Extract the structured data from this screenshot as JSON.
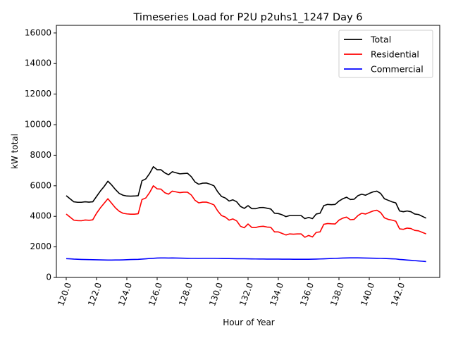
{
  "chart_data": {
    "type": "line",
    "title": "Timeseries Load for P2U p2uhs1_1247  Day 6",
    "xlabel": "Hour of Year",
    "ylabel": "kW total",
    "xlim": [
      119.35,
      144.65
    ],
    "ylim": [
      0,
      16500
    ],
    "xticks": [
      "120.0",
      "122.0",
      "124.0",
      "126.0",
      "128.0",
      "130.0",
      "132.0",
      "134.0",
      "136.0",
      "138.0",
      "140.0",
      "142.0"
    ],
    "xtick_values": [
      120,
      122,
      124,
      126,
      128,
      130,
      132,
      134,
      136,
      138,
      140,
      142
    ],
    "yticks": [
      "0",
      "2000",
      "4000",
      "6000",
      "8000",
      "10000",
      "12000",
      "14000",
      "16000"
    ],
    "ytick_values": [
      0,
      2000,
      4000,
      6000,
      8000,
      10000,
      12000,
      14000,
      16000
    ],
    "legend_position": "top-right",
    "x": [
      120.0,
      120.25,
      120.5,
      120.75,
      121.0,
      121.25,
      121.5,
      121.75,
      122.0,
      122.25,
      122.5,
      122.75,
      123.0,
      123.25,
      123.5,
      123.75,
      124.0,
      124.25,
      124.5,
      124.75,
      125.0,
      125.25,
      125.5,
      125.75,
      126.0,
      126.25,
      126.5,
      126.75,
      127.0,
      127.25,
      127.5,
      127.75,
      128.0,
      128.25,
      128.5,
      128.75,
      129.0,
      129.25,
      129.5,
      129.75,
      130.0,
      130.25,
      130.5,
      130.75,
      131.0,
      131.25,
      131.5,
      131.75,
      132.0,
      132.25,
      132.5,
      132.75,
      133.0,
      133.25,
      133.5,
      133.75,
      134.0,
      134.25,
      134.5,
      134.75,
      135.0,
      135.25,
      135.5,
      135.75,
      136.0,
      136.25,
      136.5,
      136.75,
      137.0,
      137.25,
      137.5,
      137.75,
      138.0,
      138.25,
      138.5,
      138.75,
      139.0,
      139.25,
      139.5,
      139.75,
      140.0,
      140.25,
      140.5,
      140.75,
      141.0,
      141.25,
      141.5,
      141.75,
      142.0,
      142.25,
      142.5,
      142.75,
      143.0,
      143.25,
      143.5,
      143.75
    ],
    "series": [
      {
        "name": "Total",
        "color": "#000000",
        "values": [
          5350,
          5150,
          4950,
          4920,
          4920,
          4950,
          4930,
          4950,
          5300,
          5650,
          5950,
          6300,
          6050,
          5750,
          5500,
          5380,
          5330,
          5320,
          5330,
          5350,
          6330,
          6450,
          6800,
          7250,
          7050,
          7050,
          6850,
          6720,
          6920,
          6850,
          6780,
          6800,
          6820,
          6600,
          6250,
          6100,
          6170,
          6180,
          6100,
          6000,
          5600,
          5300,
          5200,
          5000,
          5080,
          4950,
          4650,
          4520,
          4700,
          4500,
          4500,
          4570,
          4580,
          4530,
          4480,
          4200,
          4180,
          4100,
          3980,
          4050,
          4050,
          4050,
          4050,
          3850,
          3930,
          3850,
          4150,
          4200,
          4700,
          4780,
          4760,
          4780,
          5000,
          5150,
          5250,
          5100,
          5120,
          5350,
          5450,
          5380,
          5500,
          5600,
          5650,
          5500,
          5150,
          5050,
          4950,
          4880,
          4350,
          4300,
          4350,
          4300,
          4150,
          4120,
          4000,
          3880
        ]
      },
      {
        "name": "Residential",
        "color": "#ff0000",
        "values": [
          4150,
          3950,
          3750,
          3720,
          3710,
          3760,
          3740,
          3770,
          4200,
          4550,
          4850,
          5150,
          4850,
          4550,
          4330,
          4200,
          4160,
          4140,
          4140,
          4170,
          5100,
          5200,
          5550,
          6000,
          5800,
          5780,
          5550,
          5450,
          5650,
          5600,
          5550,
          5580,
          5580,
          5400,
          5050,
          4880,
          4930,
          4930,
          4850,
          4750,
          4350,
          4050,
          3950,
          3750,
          3830,
          3700,
          3350,
          3250,
          3500,
          3270,
          3270,
          3330,
          3350,
          3300,
          3280,
          2980,
          2980,
          2880,
          2780,
          2850,
          2830,
          2850,
          2850,
          2630,
          2750,
          2650,
          2950,
          2980,
          3480,
          3530,
          3510,
          3500,
          3750,
          3880,
          3950,
          3780,
          3800,
          4050,
          4200,
          4150,
          4250,
          4350,
          4400,
          4250,
          3900,
          3800,
          3750,
          3680,
          3180,
          3150,
          3230,
          3200,
          3080,
          3050,
          2950,
          2850
        ]
      },
      {
        "name": "Commercial",
        "color": "#0000ff",
        "values": [
          1230,
          1220,
          1200,
          1190,
          1180,
          1170,
          1165,
          1160,
          1155,
          1150,
          1145,
          1140,
          1140,
          1145,
          1145,
          1150,
          1160,
          1170,
          1180,
          1185,
          1200,
          1220,
          1240,
          1255,
          1270,
          1275,
          1275,
          1270,
          1275,
          1270,
          1265,
          1260,
          1255,
          1250,
          1250,
          1245,
          1250,
          1250,
          1250,
          1250,
          1245,
          1240,
          1235,
          1235,
          1230,
          1225,
          1225,
          1225,
          1220,
          1215,
          1210,
          1205,
          1205,
          1200,
          1200,
          1200,
          1200,
          1195,
          1195,
          1195,
          1190,
          1190,
          1190,
          1190,
          1190,
          1195,
          1200,
          1210,
          1220,
          1230,
          1240,
          1250,
          1260,
          1270,
          1275,
          1280,
          1280,
          1280,
          1275,
          1270,
          1265,
          1260,
          1255,
          1250,
          1240,
          1230,
          1220,
          1210,
          1180,
          1160,
          1140,
          1120,
          1100,
          1080,
          1060,
          1040
        ]
      }
    ]
  }
}
